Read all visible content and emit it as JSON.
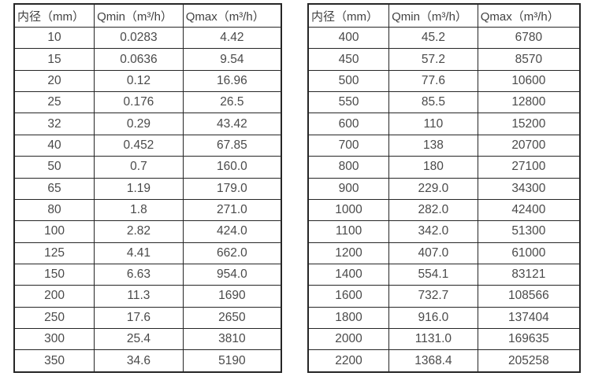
{
  "colors": {
    "background": "#ffffff",
    "border": "#262626",
    "header_text": "#424242",
    "cell_text": "#4a4a4a"
  },
  "tables": [
    {
      "name": "flow-rate-table-small-diameters",
      "headers": [
        "内径（mm）",
        "Qmin（m³/h）",
        "Qmax（m³/h）"
      ],
      "rows": [
        [
          "10",
          "0.0283",
          "4.42"
        ],
        [
          "15",
          "0.0636",
          "9.54"
        ],
        [
          "20",
          "0.12",
          "16.96"
        ],
        [
          "25",
          "0.176",
          "26.5"
        ],
        [
          "32",
          "0.29",
          "43.42"
        ],
        [
          "40",
          "0.452",
          "67.85"
        ],
        [
          "50",
          "0.7",
          "160.0"
        ],
        [
          "65",
          "1.19",
          "179.0"
        ],
        [
          "80",
          "1.8",
          "271.0"
        ],
        [
          "100",
          "2.82",
          "424.0"
        ],
        [
          "125",
          "4.41",
          "662.0"
        ],
        [
          "150",
          "6.63",
          "954.0"
        ],
        [
          "200",
          "11.3",
          "1690"
        ],
        [
          "250",
          "17.6",
          "2650"
        ],
        [
          "300",
          "25.4",
          "3810"
        ],
        [
          "350",
          "34.6",
          "5190"
        ]
      ]
    },
    {
      "name": "flow-rate-table-large-diameters",
      "headers": [
        "内径（mm）",
        "Qmin（m³/h）",
        "Qmax（m³/h）"
      ],
      "rows": [
        [
          "400",
          "45.2",
          "6780"
        ],
        [
          "450",
          "57.2",
          "8570"
        ],
        [
          "500",
          "77.6",
          "10600"
        ],
        [
          "550",
          "85.5",
          "12800"
        ],
        [
          "600",
          "110",
          "15200"
        ],
        [
          "700",
          "138",
          "20700"
        ],
        [
          "800",
          "180",
          "27100"
        ],
        [
          "900",
          "229.0",
          "34300"
        ],
        [
          "1000",
          "282.0",
          "42400"
        ],
        [
          "1100",
          "342.0",
          "51300"
        ],
        [
          "1200",
          "407.0",
          "61000"
        ],
        [
          "1400",
          "554.1",
          "83121"
        ],
        [
          "1600",
          "732.7",
          "108566"
        ],
        [
          "1800",
          "916.0",
          "137404"
        ],
        [
          "2000",
          "1131.0",
          "169635"
        ],
        [
          "2200",
          "1368.4",
          "205258"
        ]
      ]
    }
  ]
}
